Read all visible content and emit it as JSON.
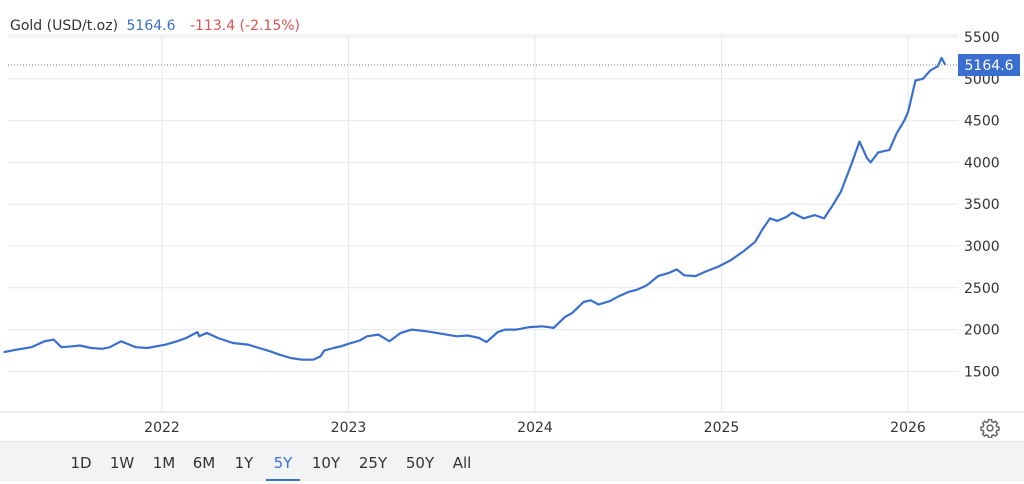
{
  "header": {
    "instrument": "Gold (USD/t.oz)",
    "price": "5164.6",
    "change": "-113.4 (-2.15%)"
  },
  "price_tag": "5164.6",
  "range_buttons": [
    {
      "label": "1D",
      "active": false
    },
    {
      "label": "1W",
      "active": false
    },
    {
      "label": "1M",
      "active": false
    },
    {
      "label": "6M",
      "active": false
    },
    {
      "label": "1Y",
      "active": false
    },
    {
      "label": "5Y",
      "active": true
    },
    {
      "label": "10Y",
      "active": false
    },
    {
      "label": "25Y",
      "active": false
    },
    {
      "label": "50Y",
      "active": false
    },
    {
      "label": "All",
      "active": false
    }
  ],
  "icons": {
    "settings": "gear-icon"
  },
  "colors": {
    "line": "#3a6fd0",
    "negative": "#d9534f",
    "tag_bg": "#3a6fd0"
  },
  "chart_data": {
    "type": "line",
    "title": "Gold (USD/t.oz)",
    "x_unit": "year",
    "x_ticks": [
      "2022",
      "2023",
      "2024",
      "2025",
      "2026"
    ],
    "y_ticks": [
      1500,
      2000,
      2500,
      3000,
      3500,
      4000,
      4500,
      5000,
      5500
    ],
    "ylim": [
      1000,
      5500
    ],
    "xlim": [
      2021.15,
      2026.3
    ],
    "grid": true,
    "legend": "top-left",
    "series": [
      {
        "name": "Gold (USD/t.oz)",
        "x": [
          2021.15,
          2021.22,
          2021.3,
          2021.37,
          2021.42,
          2021.46,
          2021.52,
          2021.56,
          2021.62,
          2021.68,
          2021.72,
          2021.78,
          2021.86,
          2021.92,
          2021.97,
          2022.02,
          2022.08,
          2022.13,
          2022.19,
          2022.2,
          2022.24,
          2022.3,
          2022.38,
          2022.46,
          2022.52,
          2022.58,
          2022.63,
          2022.69,
          2022.75,
          2022.81,
          2022.85,
          2022.87,
          2022.92,
          2022.96,
          2023.0,
          2023.06,
          2023.1,
          2023.16,
          2023.22,
          2023.28,
          2023.34,
          2023.42,
          2023.5,
          2023.58,
          2023.64,
          2023.7,
          2023.74,
          2023.78,
          2023.8,
          2023.84,
          2023.9,
          2023.97,
          2024.04,
          2024.1,
          2024.16,
          2024.2,
          2024.26,
          2024.3,
          2024.34,
          2024.4,
          2024.45,
          2024.5,
          2024.55,
          2024.6,
          2024.66,
          2024.72,
          2024.76,
          2024.8,
          2024.86,
          2024.92,
          2024.98,
          2025.05,
          2025.12,
          2025.18,
          2025.22,
          2025.26,
          2025.3,
          2025.35,
          2025.38,
          2025.44,
          2025.5,
          2025.55,
          2025.6,
          2025.64,
          2025.7,
          2025.74,
          2025.78,
          2025.8,
          2025.84,
          2025.9,
          2025.94,
          2025.98,
          2026.0,
          2026.04,
          2026.08,
          2026.1,
          2026.12,
          2026.16,
          2026.18,
          2026.2
        ],
        "y": [
          1730,
          1760,
          1790,
          1860,
          1880,
          1790,
          1800,
          1810,
          1780,
          1770,
          1790,
          1860,
          1790,
          1780,
          1800,
          1820,
          1860,
          1900,
          1970,
          1920,
          1960,
          1900,
          1840,
          1820,
          1780,
          1740,
          1700,
          1660,
          1640,
          1640,
          1680,
          1750,
          1780,
          1800,
          1830,
          1870,
          1920,
          1940,
          1860,
          1960,
          2000,
          1980,
          1950,
          1920,
          1930,
          1900,
          1850,
          1930,
          1970,
          2000,
          2000,
          2030,
          2040,
          2020,
          2150,
          2200,
          2330,
          2350,
          2300,
          2340,
          2400,
          2450,
          2480,
          2530,
          2640,
          2680,
          2720,
          2650,
          2640,
          2700,
          2750,
          2830,
          2940,
          3050,
          3200,
          3330,
          3300,
          3350,
          3400,
          3330,
          3370,
          3330,
          3500,
          3650,
          4000,
          4250,
          4050,
          4000,
          4120,
          4150,
          4350,
          4500,
          4600,
          4980,
          5000,
          5050,
          5100,
          5150,
          5250,
          5164.6
        ]
      }
    ]
  }
}
